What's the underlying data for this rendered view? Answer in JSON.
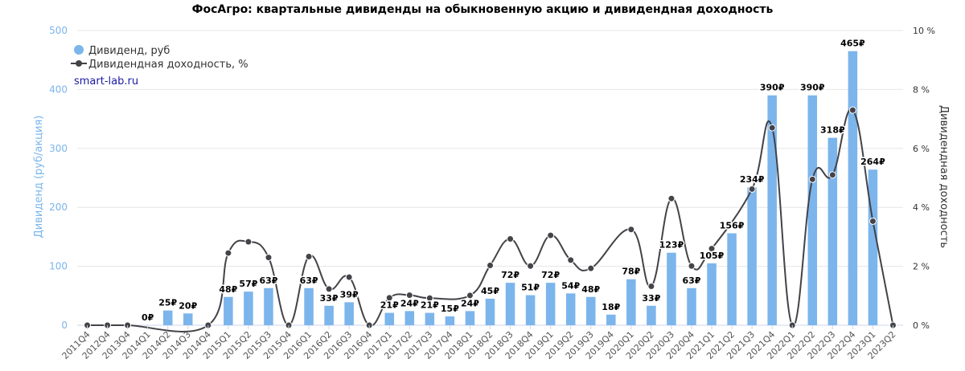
{
  "chart_data": {
    "type": "bar+line",
    "title": "ФосАгро: квартальные дивиденды на обыкновенную акцию и дивидендная доходность",
    "watermark": "smart-lab.ru",
    "categories": [
      "2011Q4",
      "2012Q4",
      "2013Q4",
      "2014Q1",
      "2014Q2",
      "2014Q3",
      "2014Q4",
      "2015Q1",
      "2015Q2",
      "2015Q3",
      "2015Q4",
      "2016Q1",
      "2016Q2",
      "2016Q3",
      "2016Q4",
      "2017Q1",
      "2017Q2",
      "2017Q3",
      "2017Q4",
      "2018Q1",
      "2018Q2",
      "2018Q3",
      "2018Q4",
      "2019Q1",
      "2019Q2",
      "2019Q3",
      "2019Q4",
      "2020Q1",
      "2020Q2",
      "2020Q3",
      "2020Q4",
      "2021Q1",
      "2021Q2",
      "2021Q3",
      "2021Q4",
      "2022Q1",
      "2022Q2",
      "2022Q3",
      "2022Q4",
      "2023Q1",
      "2023Q2"
    ],
    "series": [
      {
        "name": "Дивиденд, руб",
        "type": "bar",
        "axis": "left",
        "color": "#7cb5ec",
        "values": [
          null,
          null,
          null,
          0,
          25,
          20,
          null,
          48,
          57,
          63,
          null,
          63,
          33,
          39,
          null,
          21,
          24,
          21,
          15,
          24,
          45,
          72,
          51,
          72,
          54,
          48,
          18,
          78,
          33,
          123,
          63,
          105,
          156,
          234,
          390,
          null,
          390,
          318,
          465,
          264,
          null
        ],
        "labels": [
          "",
          "",
          "",
          "0₽",
          "25₽",
          "20₽",
          "",
          "48₽",
          "57₽",
          "63₽",
          "",
          "63₽",
          "33₽",
          "39₽",
          "",
          "21₽",
          "24₽",
          "21₽",
          "15₽",
          "24₽",
          "45₽",
          "72₽",
          "51₽",
          "72₽",
          "54₽",
          "48₽",
          "18₽",
          "78₽",
          "33₽",
          "123₽",
          "63₽",
          "105₽",
          "156₽",
          "234₽",
          "390₽",
          "",
          "390₽",
          "318₽",
          "465₽",
          "264₽",
          ""
        ]
      },
      {
        "name": "Дивидендная доходность, %",
        "type": "line",
        "axis": "right",
        "color": "#434348",
        "values": [
          0,
          0,
          0,
          null,
          null,
          null,
          0,
          2.45,
          2.83,
          2.3,
          0,
          2.33,
          1.23,
          1.63,
          0,
          0.93,
          1.02,
          0.92,
          null,
          1.01,
          2.03,
          2.93,
          2.01,
          3.05,
          2.21,
          1.93,
          null,
          3.25,
          1.32,
          4.3,
          2.01,
          2.6,
          null,
          4.62,
          6.7,
          0,
          4.95,
          5.1,
          7.3,
          3.53,
          0
        ]
      }
    ],
    "y_left": {
      "title": "Дивиденд (руб/акция)",
      "min": 0,
      "max": 500,
      "ticks": [
        "0",
        "100",
        "200",
        "300",
        "400",
        "500"
      ]
    },
    "y_right": {
      "title": "Дивидендная доходность",
      "min": 0,
      "max": 10,
      "ticks": [
        "0 %",
        "2 %",
        "4 %",
        "6 %",
        "8 %",
        "10 %"
      ]
    },
    "grid": true,
    "legend_position": "top-left"
  }
}
